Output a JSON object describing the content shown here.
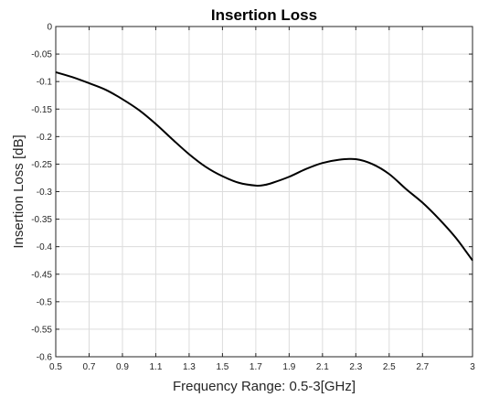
{
  "chart_data": {
    "type": "line",
    "title": "Insertion Loss",
    "xlabel": "Frequency Range: 0.5-3[GHz]",
    "ylabel": "Insertion Loss [dB]",
    "xlim": [
      0.5,
      3.0
    ],
    "ylim": [
      -0.6,
      0
    ],
    "grid": true,
    "x_ticks": [
      0.5,
      0.7,
      0.9,
      1.1,
      1.3,
      1.5,
      1.7,
      1.9,
      2.1,
      2.3,
      2.5,
      2.7,
      3.0
    ],
    "x_tick_labels": [
      "0.5",
      "0.7",
      "0.9",
      "1.1",
      "1.3",
      "1.5",
      "1.7",
      "1.9",
      "2.1",
      "2.3",
      "2.5",
      "2.7",
      "3"
    ],
    "y_ticks": [
      0,
      -0.05,
      -0.1,
      -0.15,
      -0.2,
      -0.25,
      -0.3,
      -0.35,
      -0.4,
      -0.45,
      -0.5,
      -0.55,
      -0.6
    ],
    "y_tick_labels": [
      "0",
      "-0.05",
      "-0.1",
      "-0.15",
      "-0.2",
      "-0.25",
      "-0.3",
      "-0.35",
      "-0.4",
      "-0.45",
      "-0.5",
      "-0.55",
      "-0.6"
    ],
    "series": [
      {
        "color": "#000000",
        "x": [
          0.5,
          0.6,
          0.7,
          0.8,
          0.9,
          1.0,
          1.1,
          1.2,
          1.3,
          1.4,
          1.5,
          1.6,
          1.7,
          1.75,
          1.8,
          1.9,
          2.0,
          2.1,
          2.2,
          2.3,
          2.4,
          2.5,
          2.6,
          2.7,
          2.8,
          2.9,
          3.0
        ],
        "y": [
          -0.083,
          -0.092,
          -0.103,
          -0.115,
          -0.132,
          -0.152,
          -0.177,
          -0.205,
          -0.232,
          -0.255,
          -0.272,
          -0.284,
          -0.289,
          -0.288,
          -0.284,
          -0.273,
          -0.259,
          -0.248,
          -0.242,
          -0.241,
          -0.25,
          -0.268,
          -0.295,
          -0.32,
          -0.35,
          -0.384,
          -0.425
        ]
      }
    ]
  }
}
